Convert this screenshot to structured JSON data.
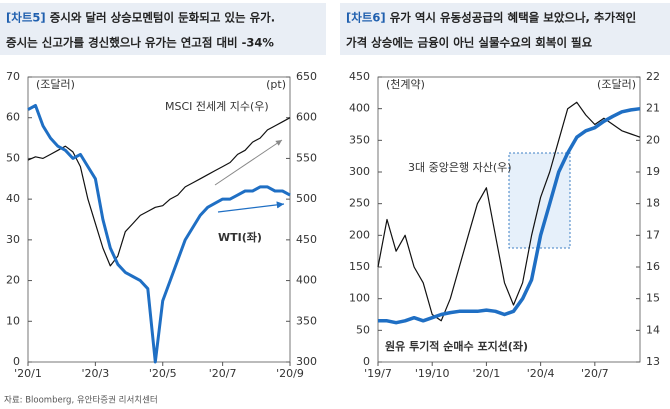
{
  "source": "자료: Bloomberg, 유안타증권 리서치센터",
  "chart_data": [
    {
      "type": "line",
      "label": "[차트5]",
      "title_lines": [
        "증시와 달러 상승모멘텀이 둔화되고 있는 유가.",
        "증시는 신고가를 경신했으나 유가는 연고점 대비 -34%"
      ],
      "y_unit": "(조달러)",
      "y2_unit": "(pt)",
      "ylim": [
        0,
        70
      ],
      "yticks": [
        0,
        10,
        20,
        30,
        40,
        50,
        60,
        70
      ],
      "y2lim": [
        300,
        650
      ],
      "y2ticks": [
        300,
        350,
        400,
        450,
        500,
        550,
        600,
        650
      ],
      "xticks": [
        {
          "value": 0,
          "label": "'20/1"
        },
        {
          "value": 9,
          "label": "'20/3"
        },
        {
          "value": 18,
          "label": "'20/5"
        },
        {
          "value": 26,
          "label": "'20/7"
        },
        {
          "value": 35,
          "label": "'20/9"
        }
      ],
      "series": [
        {
          "name": "MSCI 전세계 지수(우)",
          "color": "#111111",
          "axis": "y2",
          "values": [
            548,
            552,
            550,
            555,
            560,
            565,
            558,
            540,
            500,
            470,
            440,
            418,
            430,
            460,
            470,
            480,
            485,
            490,
            492,
            500,
            505,
            515,
            520,
            525,
            530,
            535,
            540,
            545,
            555,
            560,
            570,
            575,
            585,
            590,
            595,
            600
          ]
        },
        {
          "name": "WTI(좌)",
          "color": "#1f6fc4",
          "values": [
            62,
            63,
            58,
            55,
            53,
            52,
            50,
            51,
            48,
            45,
            35,
            28,
            24,
            22,
            21,
            20,
            18,
            0,
            15,
            20,
            25,
            30,
            33,
            36,
            38,
            39,
            40,
            40,
            41,
            42,
            42,
            43,
            43,
            42,
            42,
            41
          ]
        }
      ]
    },
    {
      "type": "line",
      "label": "[차트6]",
      "title_lines": [
        "유가 역시 유동성공급의 혜택을 보았으나, 추가적인",
        "가격 상승에는 금융이 아닌 실물수요의 회복이 필요"
      ],
      "y_unit": "(천계약)",
      "y2_unit": "(조달러)",
      "ylim": [
        0,
        450
      ],
      "yticks": [
        0,
        50,
        100,
        150,
        200,
        250,
        300,
        350,
        400,
        450
      ],
      "y2lim": [
        13,
        22
      ],
      "y2ticks": [
        13,
        14,
        15,
        16,
        17,
        18,
        19,
        20,
        21,
        22
      ],
      "xticks": [
        {
          "value": 0,
          "label": "'19/7"
        },
        {
          "value": 6,
          "label": "'19/10"
        },
        {
          "value": 12,
          "label": "'20/1"
        },
        {
          "value": 18,
          "label": "'20/4"
        },
        {
          "value": 24,
          "label": "'20/7"
        }
      ],
      "series": [
        {
          "name": "3대 중앙은행 자산(우)",
          "color": "#111111",
          "axis": "y2",
          "values": [
            16,
            17.5,
            16.5,
            17,
            16,
            15.5,
            14.5,
            14.3,
            15,
            16,
            17,
            18,
            18.5,
            17,
            15.5,
            14.8,
            15.5,
            17,
            18.2,
            19,
            20,
            21,
            21.2,
            20.8,
            20.5,
            20.7,
            20.5,
            20.3,
            20.2,
            20.1
          ]
        },
        {
          "name": "원유 투기적 순매수 포지션(좌)",
          "color": "#1f6fc4",
          "values": [
            65,
            65,
            62,
            65,
            70,
            65,
            70,
            75,
            78,
            80,
            80,
            80,
            82,
            80,
            75,
            80,
            100,
            130,
            200,
            250,
            300,
            330,
            355,
            365,
            370,
            380,
            388,
            395,
            398,
            400
          ]
        }
      ]
    }
  ]
}
